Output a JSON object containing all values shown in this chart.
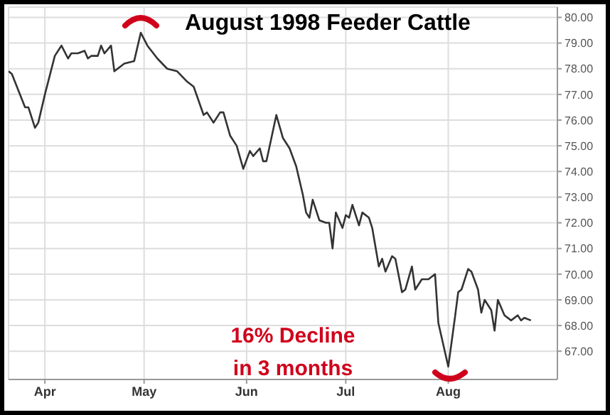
{
  "chart_data": {
    "type": "line",
    "title": "August 1998 Feeder Cattle",
    "annotations": [
      "16% Decline\nin 3 months"
    ],
    "xlim": [
      "1998-03-21",
      "1998-09-03"
    ],
    "xticks": [
      {
        "value": "1998-04-01",
        "label": "Apr"
      },
      {
        "value": "1998-05-01",
        "label": "May"
      },
      {
        "value": "1998-06-01",
        "label": "Jun"
      },
      {
        "value": "1998-07-01",
        "label": "Jul"
      },
      {
        "value": "1998-08-01",
        "label": "Aug"
      }
    ],
    "ylim": [
      65.9,
      80.4
    ],
    "yticks": [
      {
        "value": 67,
        "label": "67.00"
      },
      {
        "value": 68,
        "label": "68.00"
      },
      {
        "value": 69,
        "label": "69.00"
      },
      {
        "value": 70,
        "label": "70.00"
      },
      {
        "value": 71,
        "label": "71.00"
      },
      {
        "value": 72,
        "label": "72.00"
      },
      {
        "value": 73,
        "label": "73.00"
      },
      {
        "value": 74,
        "label": "74.00"
      },
      {
        "value": 75,
        "label": "75.00"
      },
      {
        "value": 76,
        "label": "76.00"
      },
      {
        "value": 77,
        "label": "77.00"
      },
      {
        "value": 78,
        "label": "78.00"
      },
      {
        "value": 79,
        "label": "79.00"
      },
      {
        "value": 80,
        "label": "80.00"
      }
    ],
    "grid": true,
    "series": [
      {
        "color": "#333333",
        "x": [
          "1998-03-21",
          "1998-03-22",
          "1998-03-26",
          "1998-03-27",
          "1998-03-29",
          "1998-03-30",
          "1998-04-01",
          "1998-04-04",
          "1998-04-06",
          "1998-04-08",
          "1998-04-09",
          "1998-04-11",
          "1998-04-13",
          "1998-04-14",
          "1998-04-15",
          "1998-04-17",
          "1998-04-18",
          "1998-04-19",
          "1998-04-21",
          "1998-04-22",
          "1998-04-25",
          "1998-04-28",
          "1998-04-30",
          "1998-05-02",
          "1998-05-05",
          "1998-05-08",
          "1998-05-11",
          "1998-05-14",
          "1998-05-16",
          "1998-05-19",
          "1998-05-20",
          "1998-05-22",
          "1998-05-24",
          "1998-05-25",
          "1998-05-27",
          "1998-05-29",
          "1998-05-31",
          "1998-06-02",
          "1998-06-03",
          "1998-06-05",
          "1998-06-06",
          "1998-06-07",
          "1998-06-09",
          "1998-06-10",
          "1998-06-12",
          "1998-06-14",
          "1998-06-16",
          "1998-06-18",
          "1998-06-19",
          "1998-06-20",
          "1998-06-21",
          "1998-06-23",
          "1998-06-25",
          "1998-06-26",
          "1998-06-27",
          "1998-06-28",
          "1998-06-30",
          "1998-07-01",
          "1998-07-02",
          "1998-07-03",
          "1998-07-05",
          "1998-07-06",
          "1998-07-08",
          "1998-07-09",
          "1998-07-11",
          "1998-07-12",
          "1998-07-13",
          "1998-07-15",
          "1998-07-16",
          "1998-07-18",
          "1998-07-19",
          "1998-07-21",
          "1998-07-22",
          "1998-07-24",
          "1998-07-26",
          "1998-07-28",
          "1998-07-29",
          "1998-08-01",
          "1998-08-03",
          "1998-08-04",
          "1998-08-05",
          "1998-08-07",
          "1998-08-08",
          "1998-08-10",
          "1998-08-11",
          "1998-08-12",
          "1998-08-14",
          "1998-08-15",
          "1998-08-16",
          "1998-08-18",
          "1998-08-20",
          "1998-08-22",
          "1998-08-23",
          "1998-08-24",
          "1998-08-26"
        ],
        "values": [
          77.9,
          77.8,
          76.5,
          76.5,
          75.7,
          75.9,
          77.0,
          78.5,
          78.9,
          78.4,
          78.6,
          78.6,
          78.7,
          78.4,
          78.5,
          78.5,
          78.9,
          78.6,
          78.9,
          77.9,
          78.2,
          78.3,
          79.4,
          78.9,
          78.4,
          78.0,
          77.9,
          77.5,
          77.3,
          76.2,
          76.3,
          75.9,
          76.3,
          76.3,
          75.4,
          75.0,
          74.1,
          74.8,
          74.6,
          74.9,
          74.4,
          74.4,
          75.6,
          76.2,
          75.3,
          74.9,
          74.2,
          73.1,
          72.4,
          72.2,
          72.9,
          72.1,
          72.0,
          72.0,
          71.0,
          72.4,
          71.8,
          72.3,
          72.2,
          72.7,
          71.9,
          72.4,
          72.2,
          71.8,
          70.3,
          70.6,
          70.1,
          70.7,
          70.6,
          69.3,
          69.4,
          70.3,
          69.4,
          69.8,
          69.8,
          70.0,
          68.1,
          66.4,
          68.3,
          69.3,
          69.4,
          70.2,
          70.1,
          69.4,
          68.5,
          69.0,
          68.6,
          67.8,
          69.0,
          68.4,
          68.2,
          68.4,
          68.2,
          68.3,
          68.2
        ]
      }
    ]
  }
}
